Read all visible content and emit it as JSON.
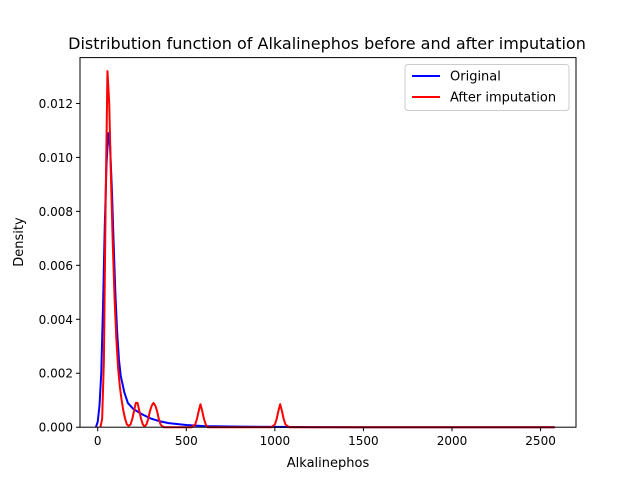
{
  "chart_data": {
    "type": "line",
    "title": "Distribution function of Alkalinephos before and after imputation",
    "xlabel": "Alkalinephos",
    "ylabel": "Density",
    "xlim": [
      -100,
      2700
    ],
    "ylim": [
      0,
      0.0137
    ],
    "xticks": [
      0,
      500,
      1000,
      1500,
      2000,
      2500
    ],
    "xtick_labels": [
      "0",
      "500",
      "1000",
      "1500",
      "2000",
      "2500"
    ],
    "yticks": [
      0,
      0.002,
      0.004,
      0.006,
      0.008,
      0.01,
      0.012
    ],
    "ytick_labels": [
      "0.000",
      "0.002",
      "0.004",
      "0.006",
      "0.008",
      "0.010",
      "0.012"
    ],
    "grid": false,
    "legend_position": "top-right",
    "series": [
      {
        "name": "Original",
        "color": "#0000ff",
        "x": [
          -10,
          0,
          10,
          20,
          30,
          40,
          50,
          60,
          70,
          80,
          90,
          100,
          110,
          120,
          130,
          150,
          170,
          200,
          250,
          300,
          350,
          400,
          500,
          600,
          700,
          800,
          1000,
          1200,
          1500,
          2000,
          2500,
          2580
        ],
        "y": [
          0.0,
          0.0002,
          0.0008,
          0.002,
          0.0045,
          0.0075,
          0.0098,
          0.0109,
          0.0104,
          0.0088,
          0.0068,
          0.0049,
          0.0035,
          0.0025,
          0.0019,
          0.0013,
          0.0009,
          0.00068,
          0.00048,
          0.00032,
          0.00022,
          0.00015,
          8e-05,
          4e-05,
          3e-05,
          2e-05,
          1e-05,
          5e-06,
          0.0,
          0.0,
          0.0,
          0.0
        ]
      },
      {
        "name": "After imputation",
        "color": "#ff0000",
        "x": [
          15,
          25,
          35,
          45,
          55,
          65,
          75,
          85,
          95,
          105,
          115,
          125,
          135,
          145,
          155,
          165,
          175,
          185,
          195,
          205,
          215,
          225,
          235,
          245,
          255,
          265,
          275,
          285,
          295,
          305,
          315,
          325,
          335,
          345,
          355,
          365,
          375,
          400,
          450,
          500,
          530,
          550,
          560,
          570,
          580,
          590,
          600,
          610,
          620,
          640,
          700,
          800,
          900,
          980,
          1000,
          1010,
          1020,
          1030,
          1040,
          1050,
          1060,
          1080,
          1200,
          1500,
          2000,
          2580
        ],
        "y": [
          0.0,
          0.0003,
          0.0025,
          0.0085,
          0.0132,
          0.012,
          0.0092,
          0.0068,
          0.0048,
          0.0033,
          0.0022,
          0.0015,
          0.001,
          0.0006,
          0.0003,
          0.0001,
          5e-05,
          0.0001,
          0.0003,
          0.0006,
          0.0009,
          0.0009,
          0.0006,
          0.0003,
          0.0001,
          3e-05,
          0.0001,
          0.0003,
          0.0006,
          0.0008,
          0.0009,
          0.0008,
          0.0006,
          0.0003,
          0.0001,
          3e-05,
          0.0,
          0.0,
          0.0,
          0.0,
          0.0,
          0.0001,
          0.0003,
          0.0006,
          0.00085,
          0.0006,
          0.0003,
          0.0001,
          0.0,
          0.0,
          0.0,
          0.0,
          0.0,
          0.0,
          0.0001,
          0.0003,
          0.0006,
          0.00085,
          0.0006,
          0.0003,
          0.0001,
          0.0,
          0.0,
          0.0,
          0.0,
          0.0
        ]
      }
    ]
  }
}
